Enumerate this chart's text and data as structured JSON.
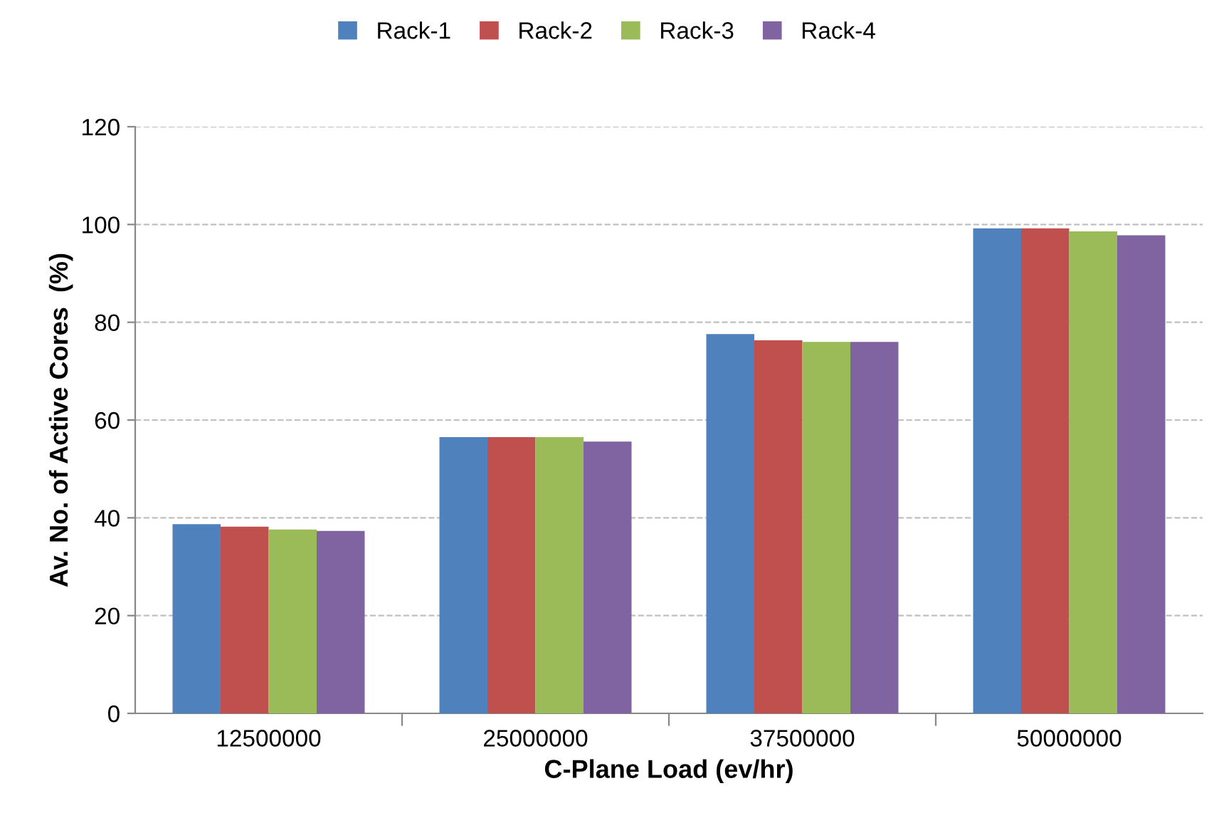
{
  "chart_data": {
    "type": "bar",
    "xlabel": "C-Plane Load (ev/hr)",
    "ylabel": "Av. No. of Active Cores  (%)",
    "categories": [
      "12500000",
      "25000000",
      "37500000",
      "50000000"
    ],
    "series": [
      {
        "name": "Rack-1",
        "color": "#4f81bd",
        "values": [
          38.7,
          56.5,
          77.6,
          99.2
        ]
      },
      {
        "name": "Rack-2",
        "color": "#c0504d",
        "values": [
          38.2,
          56.5,
          76.3,
          99.2
        ]
      },
      {
        "name": "Rack-3",
        "color": "#9bbb59",
        "values": [
          37.6,
          56.5,
          76.0,
          98.6
        ]
      },
      {
        "name": "Rack-4",
        "color": "#8064a2",
        "values": [
          37.3,
          55.6,
          76.0,
          97.8
        ]
      }
    ],
    "ylim": [
      0,
      120
    ],
    "yticks": [
      0,
      20,
      40,
      60,
      80,
      100,
      120
    ],
    "grid": "y",
    "legend": "top"
  }
}
